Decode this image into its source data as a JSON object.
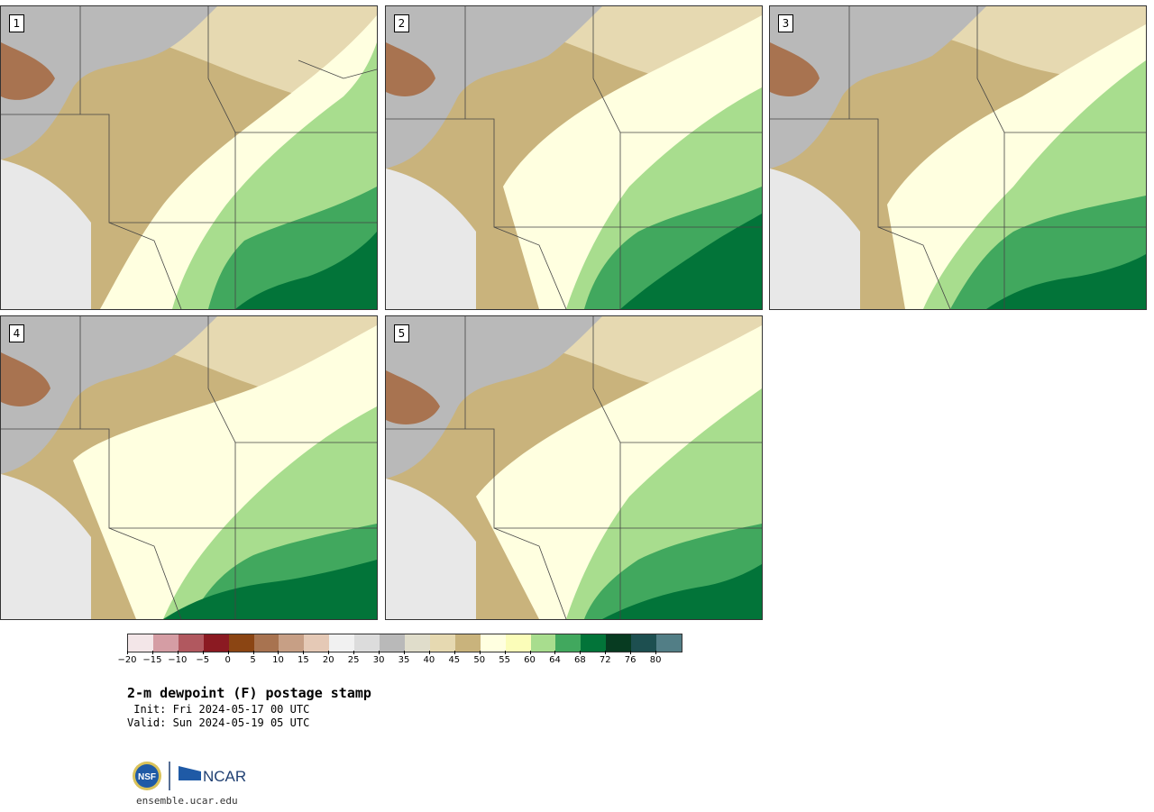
{
  "panels": [
    {
      "label": "1"
    },
    {
      "label": "2"
    },
    {
      "label": "3"
    },
    {
      "label": "4"
    },
    {
      "label": "5"
    }
  ],
  "colorbar": {
    "colors": [
      "#f3e6e8",
      "#d59da4",
      "#b1585f",
      "#8b1a22",
      "#8b4513",
      "#a87350",
      "#c79f85",
      "#e5c9b6",
      "#f1f1f1",
      "#dcdcdc",
      "#b9b9b9",
      "#e0ddcb",
      "#e6d9b1",
      "#c9b37c",
      "#ffffe0",
      "#fbfdb9",
      "#a8dd8e",
      "#41a85e",
      "#027439",
      "#073b21",
      "#1d4f50",
      "#527e86"
    ],
    "ticks": [
      "−20",
      "−15",
      "−10",
      "−5",
      "0",
      "5",
      "10",
      "15",
      "20",
      "25",
      "30",
      "35",
      "40",
      "45",
      "50",
      "55",
      "60",
      "64",
      "68",
      "72",
      "76",
      "80"
    ]
  },
  "title": "2-m dewpoint (F) postage stamp",
  "init": " Init: Fri 2024-05-17 00 UTC",
  "valid": "Valid: Sun 2024-05-19 05 UTC",
  "logo": {
    "nsf": "NSF",
    "ncar": "NCAR"
  },
  "url": "ensemble.ucar.edu"
}
